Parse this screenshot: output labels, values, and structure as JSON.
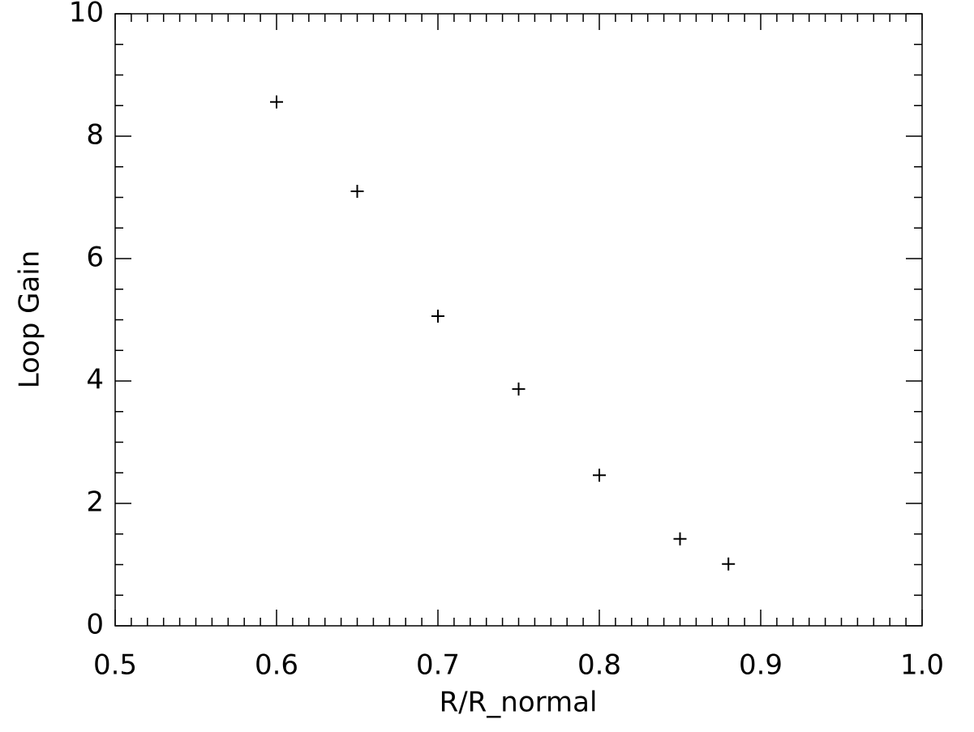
{
  "chart_data": {
    "type": "scatter",
    "xlabel": "R/R_normal",
    "ylabel": "Loop Gain",
    "x": [
      0.6,
      0.65,
      0.7,
      0.75,
      0.8,
      0.85,
      0.88
    ],
    "series": [
      {
        "color": "#000000",
        "marker": "plus",
        "values": [
          8.56,
          7.1,
          5.06,
          3.87,
          2.46,
          1.42,
          1.01
        ]
      }
    ],
    "xlim": [
      0.5,
      1
    ],
    "xticks": [
      0.5,
      0.6,
      0.7,
      0.8,
      0.9,
      {
        "value": 1,
        "label": "1.0"
      }
    ],
    "ylim": [
      0,
      10
    ],
    "yticks": [
      0,
      2,
      4,
      6,
      8,
      10
    ],
    "xminor": 10,
    "yminor": 4,
    "grid": false
  }
}
